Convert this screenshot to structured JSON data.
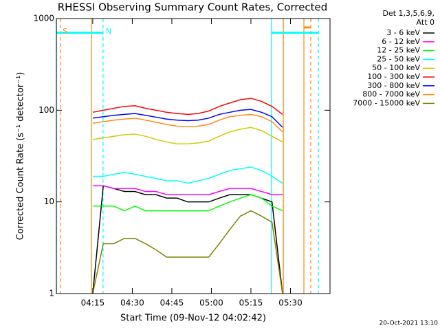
{
  "chart_data": {
    "type": "line",
    "title": "RHESSI Observing Summary Count Rates, Corrected",
    "xlabel": "Start Time (09-Nov-12 04:02:42)",
    "ylabel": "Corrected Count Rate (s⁻¹ detector⁻¹)",
    "legend_title": [
      "Det 1,3,5,6,9,",
      "Att 0"
    ],
    "footer": "20-Oct-2021 13:10",
    "ylog": true,
    "legend": "right",
    "xlim": [
      1.2,
      105
    ],
    "ylim": [
      1,
      1000
    ],
    "xticks": [
      {
        "value": 15,
        "label": "04:15"
      },
      {
        "value": 30,
        "label": "04:30"
      },
      {
        "value": 45,
        "label": "04:45"
      },
      {
        "value": 60,
        "label": "05:00"
      },
      {
        "value": 75,
        "label": "05:15"
      },
      {
        "value": 90,
        "label": "05:30"
      }
    ],
    "yticks": [
      1,
      10,
      100,
      1000
    ],
    "x": [
      15,
      19,
      23,
      27,
      31,
      35,
      39,
      43,
      47,
      51,
      55,
      59,
      63,
      67,
      71,
      75,
      79,
      83,
      87
    ],
    "series": [
      {
        "name": "3 - 6 keV",
        "color": "#000000",
        "values": [
          1,
          15,
          14,
          13,
          13,
          12,
          12,
          11,
          11,
          10,
          10,
          10,
          11,
          12,
          12,
          12,
          11,
          10,
          1
        ]
      },
      {
        "name": "6 - 12 keV",
        "color": "#ff00ff",
        "values": [
          15,
          15,
          14,
          14,
          14,
          13,
          13,
          12,
          12,
          12,
          12,
          12,
          13,
          14,
          14,
          14,
          13,
          12,
          12
        ]
      },
      {
        "name": "12 - 25 keV",
        "color": "#00ff00",
        "values": [
          9,
          9,
          9,
          8,
          9,
          8,
          8,
          8,
          8,
          8,
          8,
          8,
          9,
          10,
          11,
          12,
          11,
          9,
          8
        ]
      },
      {
        "name": "25 - 50 keV",
        "color": "#00ffff",
        "values": [
          19,
          19,
          20,
          21,
          20,
          19,
          18,
          17,
          17,
          16,
          17,
          18,
          20,
          22,
          23,
          24,
          22,
          19,
          16
        ]
      },
      {
        "name": "50 - 100 keV",
        "color": "#d4c800",
        "values": [
          48,
          50,
          52,
          54,
          55,
          52,
          48,
          45,
          43,
          43,
          44,
          46,
          52,
          58,
          62,
          65,
          60,
          52,
          45
        ]
      },
      {
        "name": "100 - 300 keV",
        "color": "#ff0000",
        "values": [
          95,
          100,
          105,
          110,
          112,
          105,
          100,
          95,
          92,
          90,
          92,
          98,
          110,
          120,
          130,
          135,
          125,
          110,
          90
        ]
      },
      {
        "name": "300 - 800 keV",
        "color": "#0000ff",
        "values": [
          82,
          85,
          88,
          90,
          92,
          88,
          84,
          80,
          78,
          77,
          78,
          82,
          90,
          95,
          100,
          102,
          95,
          85,
          65
        ]
      },
      {
        "name": "800 - 7000 keV",
        "color": "#ff8c1a",
        "values": [
          72,
          75,
          78,
          80,
          82,
          78,
          74,
          70,
          67,
          66,
          67,
          70,
          78,
          85,
          88,
          90,
          85,
          75,
          58
        ]
      },
      {
        "name": "7000 - 15000 keV",
        "color": "#808000",
        "values": [
          1,
          3.5,
          3.5,
          4,
          4,
          3.5,
          3,
          2.5,
          2.5,
          2.5,
          2.5,
          2.5,
          3.5,
          5,
          7,
          8,
          7,
          6,
          1
        ]
      }
    ],
    "vlines": [
      {
        "x": 1.2,
        "color": "#00ffff",
        "dashed": false
      },
      {
        "x": 82.8,
        "color": "#00ffff",
        "dashed": false
      },
      {
        "x": 18.9,
        "color": "#00ffff",
        "dashed": true
      },
      {
        "x": 100.6,
        "color": "#00ffff",
        "dashed": true
      },
      {
        "x": 14.5,
        "color": "#ff8c1a",
        "dashed": false
      },
      {
        "x": 87.3,
        "color": "#ff8c1a",
        "dashed": false
      },
      {
        "x": 95.1,
        "color": "#ff8c1a",
        "dashed": false
      },
      {
        "x": 2.7,
        "color": "#ff8c1a",
        "dashed": true
      },
      {
        "x": 97.7,
        "color": "#ff8c1a",
        "dashed": true
      }
    ],
    "bars": [
      {
        "x": [
          1.2,
          18.9
        ],
        "y": 700,
        "color": "#00ffff"
      },
      {
        "x": [
          82.8,
          100.6
        ],
        "y": 700,
        "color": "#00ffff"
      },
      {
        "x": [
          95.1,
          97.7
        ],
        "y": 800,
        "color": "#ff8c1a"
      }
    ],
    "flags": [
      {
        "label": "S",
        "x": 4.5,
        "color": "#ff8c1a"
      },
      {
        "label": "N",
        "x": 21,
        "color": "#00ffff"
      }
    ]
  }
}
